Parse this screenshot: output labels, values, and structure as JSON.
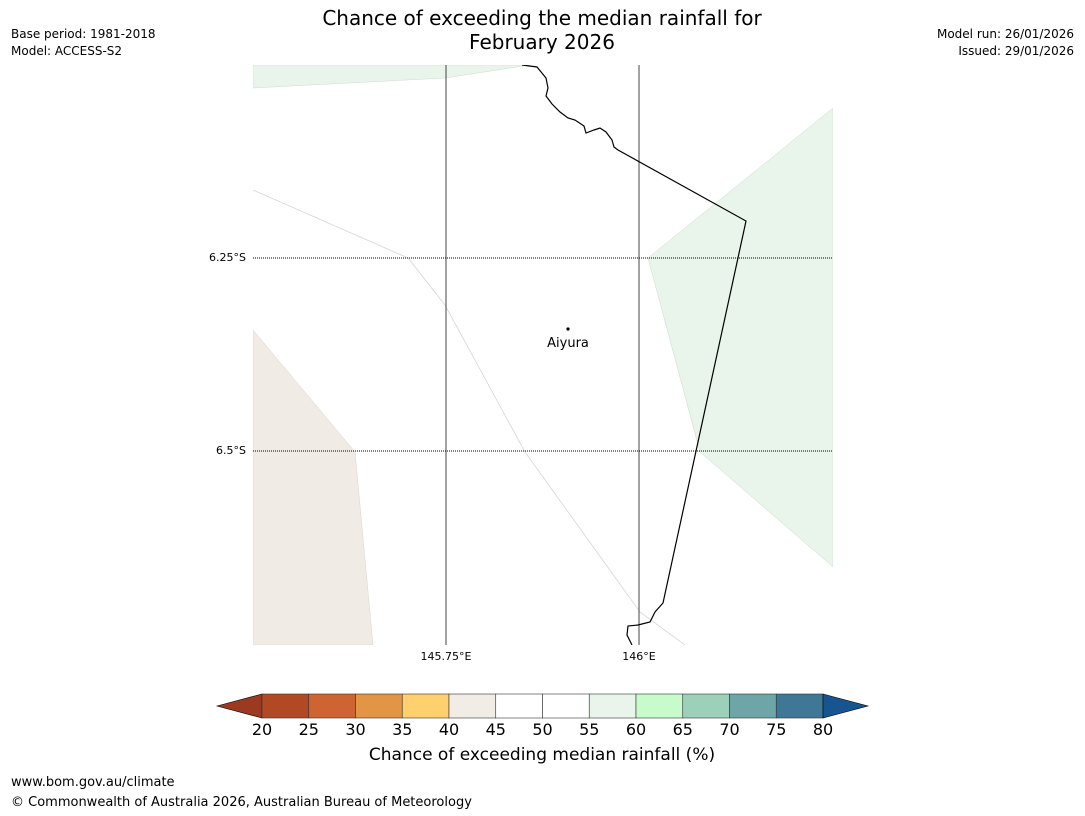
{
  "header": {
    "base_period": "Base period: 1981-2018",
    "model": "Model: ACCESS-S2",
    "title_line1": "Chance of exceeding the median rainfall for",
    "title_line2": "February 2026",
    "model_run": "Model run: 26/01/2026",
    "issued": "Issued: 29/01/2026"
  },
  "map": {
    "place": "Aiyura",
    "latitude_labels": [
      "6.25°S",
      "6.5°S"
    ],
    "longitude_labels": [
      "145.75°E",
      "146°E"
    ],
    "colors": {
      "above_60": "#e9f5ea",
      "below_40": "#f0ebe4",
      "border": "#000000",
      "gridline": "#444444"
    }
  },
  "legend": {
    "ticks": [
      "20",
      "25",
      "30",
      "35",
      "40",
      "45",
      "50",
      "55",
      "60",
      "65",
      "70",
      "75",
      "80"
    ],
    "colors": [
      "#b04a25",
      "#cd6432",
      "#e29645",
      "#ffd06d",
      "#f1ece6",
      "#ffffff",
      "#ffffff",
      "#e9f5ea",
      "#c8fbcb",
      "#9dd0b8",
      "#6ea5a6",
      "#3f7897"
    ],
    "extend_low_color": "#9b3a20",
    "extend_high_color": "#165590",
    "label": "Chance of exceeding median rainfall (%)"
  },
  "footer": {
    "website": "www.bom.gov.au/climate",
    "copyright": "© Commonwealth of Australia 2026, Australian Bureau of Meteorology"
  }
}
